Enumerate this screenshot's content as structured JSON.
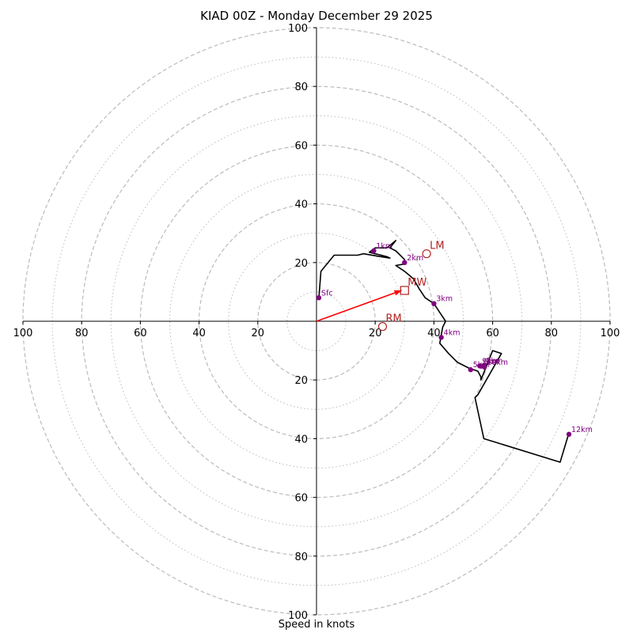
{
  "chart_data": {
    "type": "hodograph",
    "title": "KIAD 00Z - Monday December 29 2025",
    "xlabel": "Speed in knots",
    "units": "knots",
    "range": [
      -100,
      100
    ],
    "ring_major": [
      20,
      40,
      60,
      80,
      100
    ],
    "ring_minor": [
      10,
      30,
      50,
      70,
      90
    ],
    "tick_labels": [
      "100",
      "80",
      "60",
      "40",
      "20",
      "20",
      "40",
      "60",
      "80",
      "100"
    ],
    "profile": [
      [
        0.8,
        8
      ],
      [
        1.5,
        17
      ],
      [
        6,
        22.5
      ],
      [
        14,
        22.5
      ],
      [
        16,
        23
      ],
      [
        22,
        22
      ],
      [
        25,
        21.5
      ],
      [
        24,
        22
      ],
      [
        18,
        23.5
      ],
      [
        20,
        25
      ],
      [
        24,
        25
      ],
      [
        27,
        27.5
      ],
      [
        25,
        25
      ],
      [
        27,
        24
      ],
      [
        30,
        21
      ],
      [
        30,
        19.5
      ],
      [
        27,
        19
      ],
      [
        30,
        17
      ],
      [
        33,
        14.5
      ],
      [
        35,
        11
      ],
      [
        37,
        8
      ],
      [
        40,
        6
      ],
      [
        42,
        3
      ],
      [
        44,
        0
      ],
      [
        43,
        -2
      ],
      [
        42,
        -7.5
      ],
      [
        45,
        -11
      ],
      [
        48,
        -14
      ],
      [
        52,
        -16
      ],
      [
        55,
        -17
      ],
      [
        56,
        -19
      ],
      [
        56,
        -20
      ],
      [
        60,
        -10
      ],
      [
        63,
        -11
      ],
      [
        55,
        -25
      ],
      [
        54,
        -26
      ],
      [
        57,
        -40
      ],
      [
        83,
        -48
      ],
      [
        86,
        -38
      ]
    ],
    "levels": [
      {
        "label": "Sfc",
        "u": 0.8,
        "v": 8
      },
      {
        "label": "1km",
        "u": 19.5,
        "v": 24
      },
      {
        "label": "2km",
        "u": 30,
        "v": 20
      },
      {
        "label": "3km",
        "u": 40,
        "v": 6
      },
      {
        "label": "4km",
        "u": 42.5,
        "v": -5.5
      },
      {
        "label": "5km",
        "u": 52.5,
        "v": -16.5
      },
      {
        "label": "6km",
        "u": 56,
        "v": -15.3
      },
      {
        "label": "8km",
        "u": 57,
        "v": -15.1
      },
      {
        "label": "9km",
        "u": 55.6,
        "v": -15.2
      },
      {
        "label": "10km",
        "u": 57.2,
        "v": -15.6
      },
      {
        "label": "12km",
        "u": 86,
        "v": -38.5
      }
    ],
    "storm_markers": [
      {
        "label": "LM",
        "type": "circle",
        "u": 37.5,
        "v": 23
      },
      {
        "label": "MW",
        "type": "square",
        "u": 30,
        "v": 10.5
      },
      {
        "label": "RM",
        "type": "circle",
        "u": 22.5,
        "v": -1.8
      }
    ],
    "shear_vector": {
      "from": [
        0,
        0
      ],
      "to": [
        29,
        10.5
      ]
    }
  },
  "colors": {
    "profile": "#000000",
    "level_points": "#800080",
    "storm_markers": "#b22222",
    "shear_vector": "#ff0000",
    "grid": "#bbbbbb"
  }
}
